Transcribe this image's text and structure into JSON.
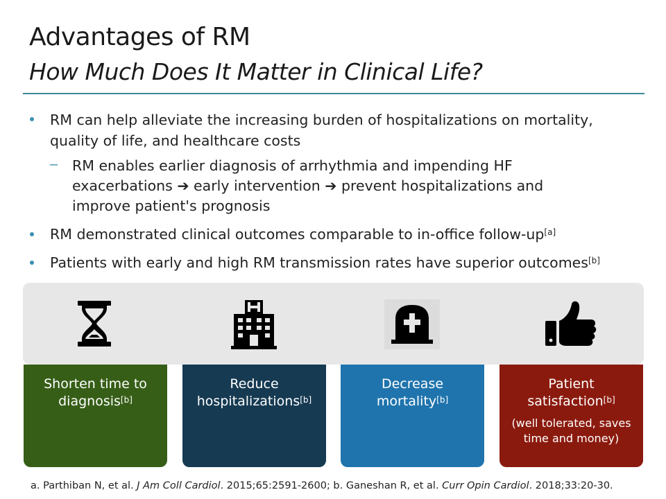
{
  "title": "Advantages of RM",
  "subtitle": "How Much Does It Matter in Clinical Life?",
  "bullets": [
    {
      "line1": "RM can help alleviate the increasing burden of hospitalizations on mortality,",
      "line2": "quality of life, and healthcare costs",
      "sub": {
        "line1": "RM enables earlier diagnosis of arrhythmia and impending HF",
        "line2a": "exacerbations",
        "arrow": "➔",
        "line2b": "early intervention",
        "line2c": "prevent hospitalizations and",
        "line3": "improve patient's prognosis"
      }
    },
    {
      "text": "RM demonstrated clinical outcomes comparable to in-office follow-up",
      "ref": "[a]"
    },
    {
      "text": "Patients with early and high RM transmission rates have superior outcomes",
      "ref": "[b]"
    }
  ],
  "cards": [
    {
      "line1": "Shorten time to",
      "line2": "diagnosis",
      "ref": "[b]",
      "color": "#365e17",
      "icon": "hourglass-icon"
    },
    {
      "line1": "Reduce",
      "line2": "hospitalizations",
      "ref": "[b]",
      "color": "#163a52",
      "icon": "hospital-icon"
    },
    {
      "line1": "Decrease",
      "line2": "mortality",
      "ref": "[b]",
      "color": "#1f74ad",
      "icon": "tombstone-icon"
    },
    {
      "line1": "Patient",
      "line2": "satisfaction",
      "ref": "[b]",
      "note": "(well tolerated, saves time and money)",
      "color": "#8b1a0e",
      "icon": "thumbs-up-icon"
    }
  ],
  "footnote": {
    "a_prefix": "a. Parthiban N, et al. ",
    "a_journal": "J Am Coll Cardiol",
    "a_rest": ". 2015;65:2591-2600; b. Ganeshan R, et al. ",
    "b_journal": "Curr Opin Cardiol",
    "b_rest": ". 2018;33:20-30."
  }
}
